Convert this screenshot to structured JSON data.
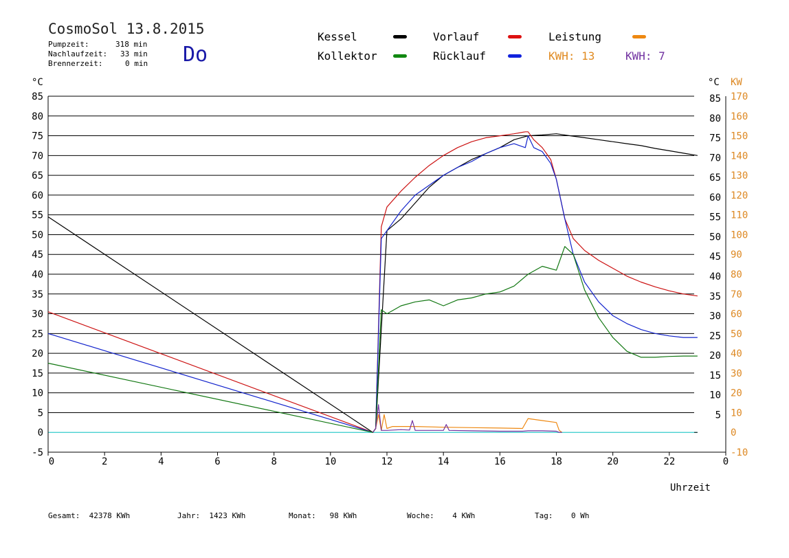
{
  "header": {
    "title": "CosmoSol 13.8.2015",
    "pump_label": "Pumpzeit:",
    "pump_value": "318 min",
    "nachlauf_label": "Nachlaufzeit:",
    "nachlauf_value": "33 min",
    "brenner_label": "Brennerzeit:",
    "brenner_value": "0 min",
    "day": "Do"
  },
  "legend": {
    "kessel": "Kessel",
    "vorlauf": "Vorlauf",
    "leistung": "Leistung",
    "kollektor": "Kollektor",
    "ruecklauf": "Rücklauf",
    "kwh1": "KWH: 13",
    "kwh2": "KWH: 7"
  },
  "colors": {
    "kessel": "#000000",
    "vorlauf": "#cc1111",
    "leistung": "#ee8811",
    "kollektor": "#117711",
    "ruecklauf": "#1122cc",
    "kwh2": "#7030a0",
    "zero_line": "#33cccc",
    "right_kw_axis": "#dd8822"
  },
  "footer": {
    "gesamt": "Gesamt:  42378 KWh",
    "jahr": "Jahr:  1423 KWh",
    "monat": "Monat:   98 KWh",
    "woche": "Woche:    4 KWh",
    "tag": "Tag:    0 Wh"
  },
  "chart_data": {
    "type": "line",
    "xlabel": "Uhrzeit",
    "ylabel_left": "°C",
    "ylabel_right": "°C",
    "ylabel_right2": "KW",
    "xlim": [
      0,
      24
    ],
    "ylim": [
      -5,
      85
    ],
    "x_ticks": [
      "0",
      "2",
      "4",
      "6",
      "8",
      "10",
      "12",
      "14",
      "16",
      "18",
      "20",
      "22",
      "0"
    ],
    "y_ticks_left": [
      "85",
      "80",
      "75",
      "70",
      "65",
      "60",
      "55",
      "50",
      "45",
      "40",
      "35",
      "30",
      "25",
      "20",
      "15",
      "10",
      "5",
      "0",
      "-5"
    ],
    "y_ticks_right": [
      "85",
      "80",
      "75",
      "70",
      "65",
      "60",
      "55",
      "50",
      "45",
      "40",
      "35",
      "30",
      "25",
      "20",
      "15",
      "10",
      "5"
    ],
    "y_ticks_kw": [
      "170",
      "160",
      "150",
      "140",
      "130",
      "120",
      "110",
      "100",
      "90",
      "80",
      "70",
      "60",
      "50",
      "40",
      "30",
      "20",
      "10",
      "0",
      "-10"
    ],
    "grid": true,
    "series": [
      {
        "name": "Kessel",
        "color": "#000000",
        "x": [
          0,
          11.5,
          11.6,
          12.0,
          12.5,
          13.0,
          13.5,
          14.0,
          14.5,
          15.0,
          15.5,
          16.0,
          16.5,
          17.0,
          17.5,
          18.0,
          18.5,
          19.0,
          19.5,
          20.0,
          20.5,
          21.0,
          21.5,
          22.0,
          22.5,
          23.0
        ],
        "y": [
          54.5,
          0,
          1,
          51,
          54,
          58,
          62,
          65,
          67,
          69,
          70.5,
          72,
          74,
          75,
          75.2,
          75.5,
          75,
          74.5,
          74,
          73.5,
          73,
          72.5,
          71.8,
          71.2,
          70.6,
          70
        ]
      },
      {
        "name": "Vorlauf",
        "color": "#cc1111",
        "x": [
          0,
          11.5,
          11.6,
          11.8,
          12.0,
          12.5,
          13.0,
          13.5,
          14.0,
          14.5,
          15.0,
          15.5,
          16.0,
          16.5,
          16.9,
          17.0,
          17.2,
          17.5,
          17.8,
          18.0,
          18.3,
          18.6,
          19.0,
          19.5,
          20.0,
          20.5,
          21.0,
          21.5,
          22.0,
          22.5,
          23.0
        ],
        "y": [
          30.5,
          0,
          1,
          52,
          57,
          61,
          64.5,
          67.5,
          70,
          72,
          73.5,
          74.5,
          75,
          75.5,
          76,
          76,
          74,
          72,
          69,
          64,
          54,
          49,
          46,
          43.5,
          41.5,
          39.5,
          38,
          36.8,
          35.8,
          35,
          34.5
        ]
      },
      {
        "name": "Rücklauf",
        "color": "#1122cc",
        "x": [
          0,
          11.5,
          11.6,
          11.8,
          12.0,
          12.5,
          13.0,
          13.5,
          14.0,
          14.5,
          15.0,
          15.5,
          16.0,
          16.5,
          16.9,
          17.0,
          17.2,
          17.5,
          17.8,
          18.0,
          18.3,
          18.6,
          19.0,
          19.5,
          20.0,
          20.5,
          21.0,
          21.5,
          22.0,
          22.5,
          23.0
        ],
        "y": [
          25,
          0,
          1,
          49,
          51,
          56,
          60,
          62.5,
          65,
          67,
          68.5,
          70.5,
          72,
          73,
          72,
          75,
          72,
          71,
          68,
          64,
          54,
          45,
          38,
          33,
          29.5,
          27.5,
          26,
          25,
          24.4,
          24,
          24
        ]
      },
      {
        "name": "Kollektor",
        "color": "#117711",
        "x": [
          0,
          11.5,
          11.6,
          11.8,
          12.0,
          12.5,
          13.0,
          13.5,
          14.0,
          14.5,
          15.0,
          15.5,
          16.0,
          16.5,
          17.0,
          17.5,
          18.0,
          18.3,
          18.6,
          19.0,
          19.5,
          20.0,
          20.5,
          21.0,
          21.5,
          22.0,
          22.5,
          23.0
        ],
        "y": [
          17.5,
          0,
          1,
          31,
          30,
          32,
          33,
          33.5,
          32,
          33.5,
          34,
          35,
          35.5,
          37,
          40,
          42,
          41,
          47,
          45,
          36,
          29,
          24,
          20.5,
          19,
          19,
          19.2,
          19.3,
          19.3
        ]
      },
      {
        "name": "Leistung",
        "color": "#ee8811",
        "x": [
          11.5,
          11.6,
          11.7,
          11.8,
          11.9,
          12.0,
          12.2,
          13.0,
          14.0,
          15.0,
          16.0,
          16.8,
          17.0,
          17.5,
          18.0,
          18.1,
          18.2
        ],
        "y": [
          0,
          1,
          4.5,
          0.5,
          4.5,
          1,
          1.5,
          1.5,
          1.3,
          1.2,
          1.1,
          1,
          3.5,
          3,
          2.5,
          0.5,
          0
        ]
      },
      {
        "name": "KWH 7",
        "color": "#7030a0",
        "x": [
          11.5,
          11.6,
          11.7,
          11.8,
          12.0,
          12.5,
          12.8,
          12.9,
          13.0,
          13.5,
          14.0,
          14.1,
          14.2,
          15.0,
          16.0,
          16.8,
          17.0,
          17.5,
          18.0,
          18.1,
          18.2
        ],
        "y": [
          0,
          1,
          7,
          0.5,
          0.5,
          0.7,
          0.6,
          3,
          0.5,
          0.5,
          0.5,
          2,
          0.5,
          0.4,
          0.3,
          0.3,
          0.4,
          0.4,
          0.3,
          0,
          0
        ]
      }
    ]
  }
}
